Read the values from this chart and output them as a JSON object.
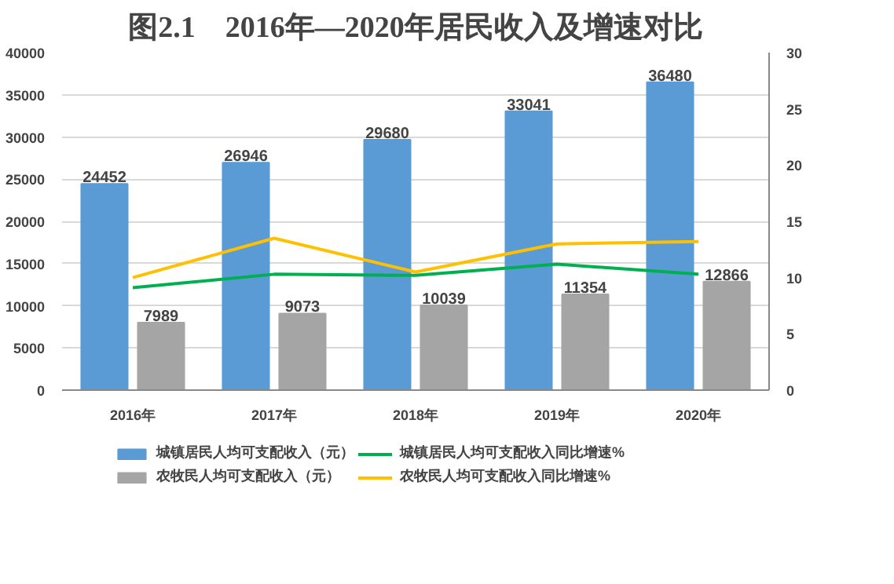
{
  "chart_data": {
    "type": "bar",
    "title": "图2.1　2016年—2020年居民收入及增速对比",
    "categories": [
      "2016年",
      "2017年",
      "2018年",
      "2019年",
      "2020年"
    ],
    "series": [
      {
        "name": "城镇居民人均可支配收入（元）",
        "color": "#5b9bd5",
        "values": [
          24452,
          26946,
          29680,
          33041,
          36480
        ],
        "value_labels": [
          "24452",
          "26946",
          "29680",
          "33041",
          "36480"
        ]
      },
      {
        "name": "农牧民人均可支配收入（元）",
        "color": "#a5a5a5",
        "values": [
          7989,
          9073,
          10039,
          11354,
          12866
        ],
        "value_labels": [
          "7989",
          "9073",
          "10039",
          "11354",
          "12866"
        ]
      },
      {
        "name": "城镇居民人均可支配收入同比增速%",
        "type": "line",
        "axis": "y2",
        "color": "#00b050",
        "values": [
          9.1,
          10.3,
          10.2,
          11.2,
          10.3
        ]
      },
      {
        "name": "农牧民人均可支配收入同比增速%",
        "type": "line",
        "axis": "y2",
        "color": "#ffc000",
        "values": [
          10.0,
          13.5,
          10.5,
          13.0,
          13.2
        ]
      }
    ],
    "ylim": [
      0,
      40000
    ],
    "yticks": [
      0,
      5000,
      10000,
      15000,
      20000,
      25000,
      30000,
      35000,
      40000
    ],
    "y2lim": [
      0,
      30
    ],
    "y2ticks": [
      0,
      5,
      10,
      15,
      20,
      25,
      30
    ],
    "grid": "y",
    "legend": "bottom"
  }
}
